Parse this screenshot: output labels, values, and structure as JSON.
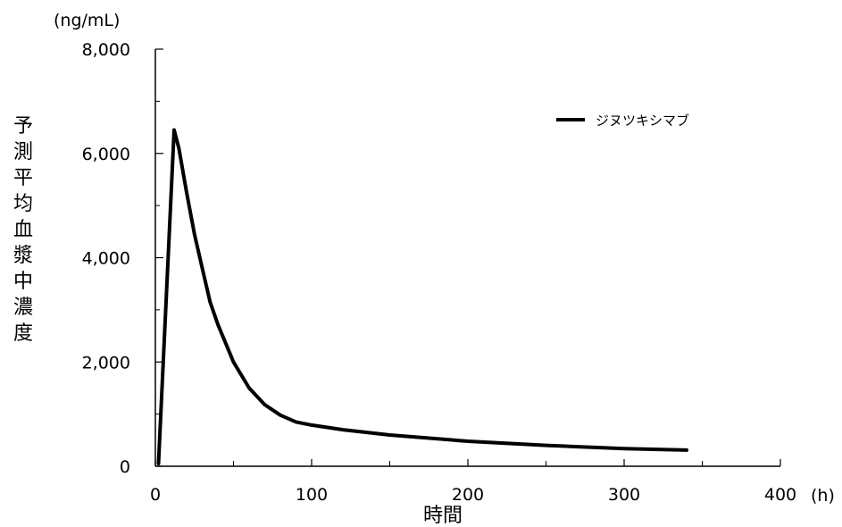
{
  "chart_data": {
    "type": "line",
    "title": "",
    "xlabel": "時間",
    "x_unit": "(h)",
    "ylabel": "予測平均血漿中濃度",
    "y_unit": "(ng/mL)",
    "xlim": [
      0,
      400
    ],
    "ylim": [
      0,
      8000
    ],
    "x_ticks": [
      0,
      100,
      200,
      300,
      400
    ],
    "x_tick_labels": [
      "0",
      "100",
      "200",
      "300",
      "400"
    ],
    "y_ticks": [
      0,
      2000,
      4000,
      6000,
      8000
    ],
    "y_tick_labels": [
      "0",
      "2,000",
      "4,000",
      "6,000",
      "8,000"
    ],
    "x_minor_ticks": [
      50,
      150,
      250,
      350
    ],
    "y_minor_ticks": [
      1000,
      3000,
      5000,
      7000
    ],
    "grid": false,
    "legend_position": "top-right",
    "series": [
      {
        "name": "ジヌツキシマブ",
        "color": "#000000",
        "x": [
          2,
          12,
          15,
          20,
          25,
          30,
          35,
          40,
          50,
          60,
          70,
          80,
          90,
          100,
          120,
          150,
          200,
          250,
          300,
          340
        ],
        "y": [
          50,
          6450,
          6100,
          5250,
          4450,
          3800,
          3150,
          2720,
          2000,
          1500,
          1180,
          980,
          850,
          790,
          700,
          600,
          480,
          400,
          340,
          310
        ]
      }
    ]
  }
}
